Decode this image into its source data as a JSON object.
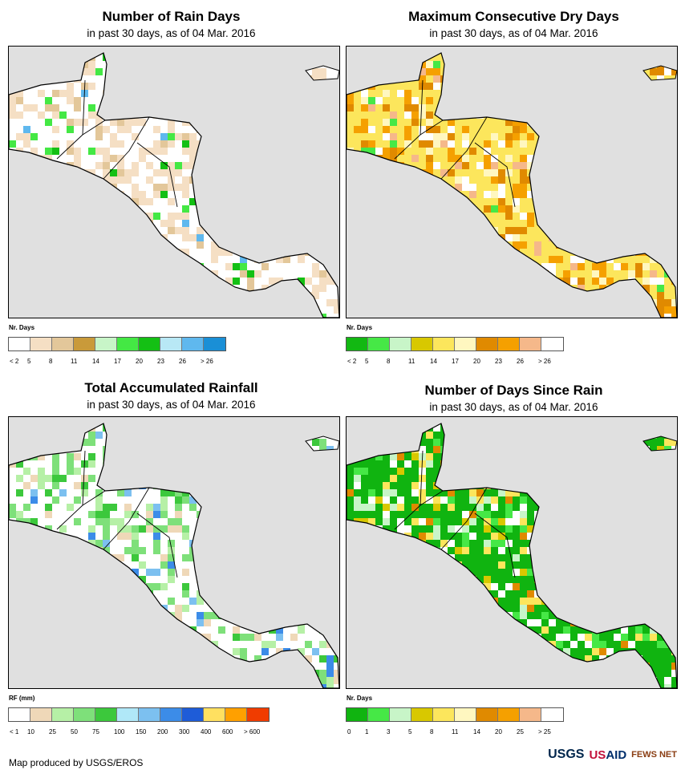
{
  "panels": [
    {
      "title": "Number of Rain Days",
      "subtitle": "in past 30 days, as of 04 Mar. 2016",
      "legend": {
        "title": "Nr. Days",
        "colors": [
          "#ffffff",
          "#f5dfc4",
          "#e3c79a",
          "#c99a3a",
          "#c8f5c8",
          "#44e844",
          "#14c014",
          "#b8e8f5",
          "#5fb8ee",
          "#1a8fd6"
        ],
        "labels": [
          "< 2",
          "5",
          "8",
          "11",
          "14",
          "17",
          "20",
          "23",
          "26",
          "> 26"
        ]
      }
    },
    {
      "title": "Maximum Consecutive Dry Days",
      "subtitle": "in past 30 days, as of 04 Mar. 2016",
      "legend": {
        "title": "Nr. Days",
        "colors": [
          "#12b812",
          "#46e846",
          "#c8f5c8",
          "#d8c800",
          "#fce65c",
          "#fff7c0",
          "#e08a00",
          "#f5a000",
          "#f5b88a",
          "#ffffff"
        ],
        "labels": [
          "< 2",
          "5",
          "8",
          "11",
          "14",
          "17",
          "20",
          "23",
          "26",
          "> 26"
        ]
      }
    },
    {
      "title": "Total Accumulated Rainfall",
      "subtitle": "in past 30 days, as of 04 Mar. 2016",
      "legend": {
        "title": "RF (mm)",
        "colors": [
          "#ffffff",
          "#efd8b8",
          "#b6f0a6",
          "#7ee07a",
          "#3cc83c",
          "#b0e8f8",
          "#7cc0f0",
          "#3c8ce8",
          "#1e5cd8",
          "#ffe060",
          "#ffa000",
          "#f03c00"
        ],
        "labels": [
          "< 1",
          "10",
          "25",
          "50",
          "75",
          "100",
          "150",
          "200",
          "300",
          "400",
          "600",
          "> 600"
        ]
      }
    },
    {
      "title": "Number of Days Since Rain",
      "subtitle": "in past 30 days, as of 04 Mar. 2016",
      "legend": {
        "title": "Nr. Days",
        "colors": [
          "#10b410",
          "#46e846",
          "#c8f5c8",
          "#d8c800",
          "#fce65c",
          "#fff7c0",
          "#e08a00",
          "#f5a000",
          "#f5b88a",
          "#ffffff"
        ],
        "labels": [
          "0",
          "1",
          "3",
          "5",
          "8",
          "11",
          "14",
          "20",
          "25",
          "> 25"
        ]
      }
    }
  ],
  "footer": "Map produced by USGS/EROS",
  "logos": {
    "usgs": "USGS",
    "usaid_prefix": "US",
    "usaid_suffix": "AID",
    "fews": "FEWS NET"
  }
}
